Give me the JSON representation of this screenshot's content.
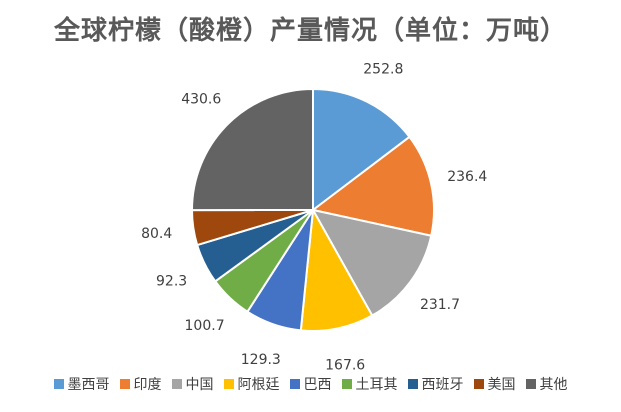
{
  "chart_data": {
    "type": "pie",
    "title": "全球柠檬（酸橙）产量情况（单位：万吨）",
    "categories": [
      "墨西哥",
      "印度",
      "中国",
      "阿根廷",
      "巴西",
      "土耳其",
      "西班牙",
      "美国",
      "其他"
    ],
    "values": [
      252.8,
      236.4,
      231.7,
      167.6,
      129.3,
      100.7,
      92.3,
      80.4,
      430.6
    ],
    "data_labels": [
      "252.8",
      "236.4",
      "231.7",
      "167.6",
      "129.3",
      "100.7",
      "92.3",
      "80.4",
      "430.6"
    ],
    "colors": [
      "#5B9BD5",
      "#ED7D31",
      "#A5A5A5",
      "#FFC000",
      "#4472C4",
      "#70AD47",
      "#255E91",
      "#9E480E",
      "#636363"
    ],
    "legend_position": "bottom",
    "start_angle": "12 o'clock",
    "direction": "clockwise"
  }
}
